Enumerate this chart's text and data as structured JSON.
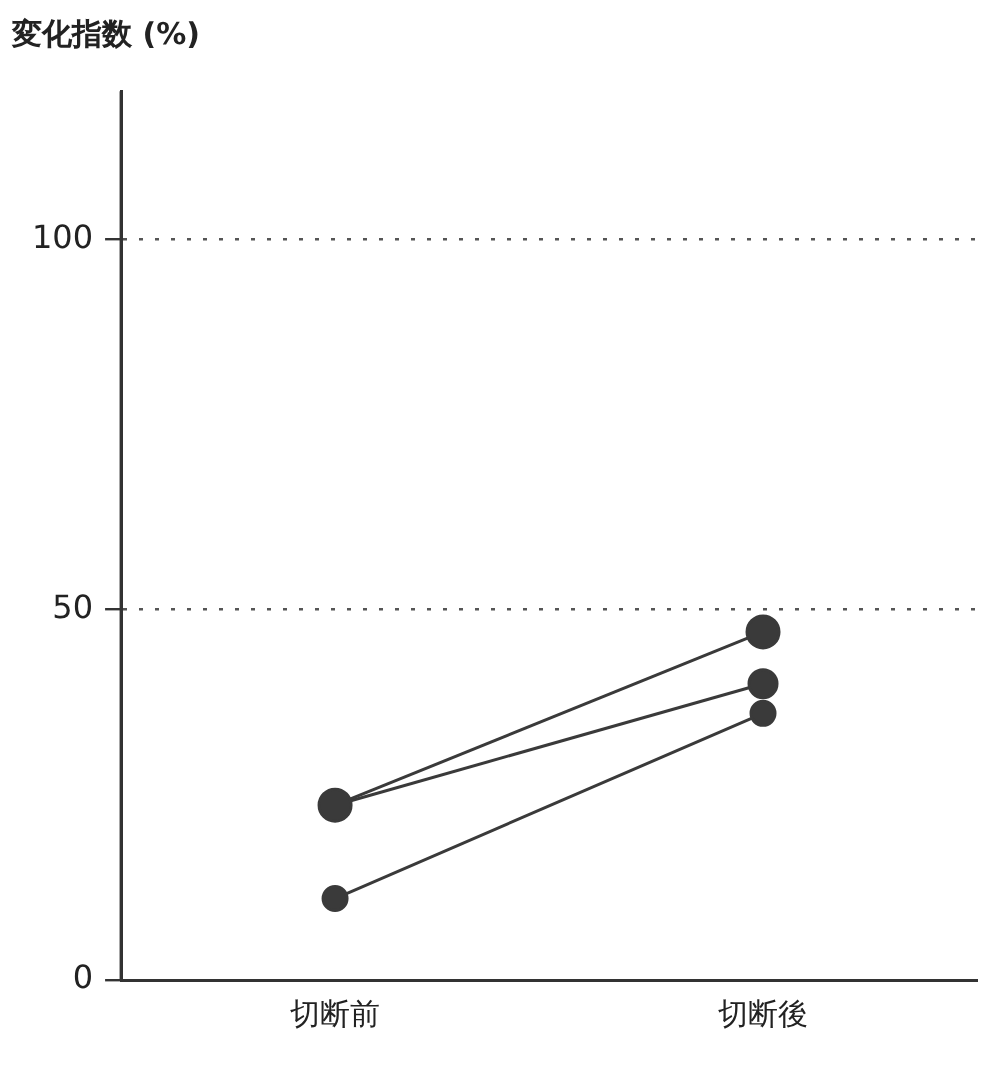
{
  "chart_data": {
    "type": "line",
    "ylabel": "変化指数 (%)",
    "categories": [
      "切断前",
      "切断後"
    ],
    "series": [
      {
        "color": "#3a3a3a",
        "values": [
          23.6,
          47
        ]
      },
      {
        "color": "#3a3a3a",
        "values": [
          23.6,
          40
        ]
      },
      {
        "color": "#3a3a3a",
        "values": [
          11,
          36
        ]
      }
    ],
    "ylim": [
      0,
      120
    ],
    "yticks": [
      0,
      50,
      100
    ],
    "grid": "y",
    "marker": "circle",
    "line_style": "solid"
  }
}
